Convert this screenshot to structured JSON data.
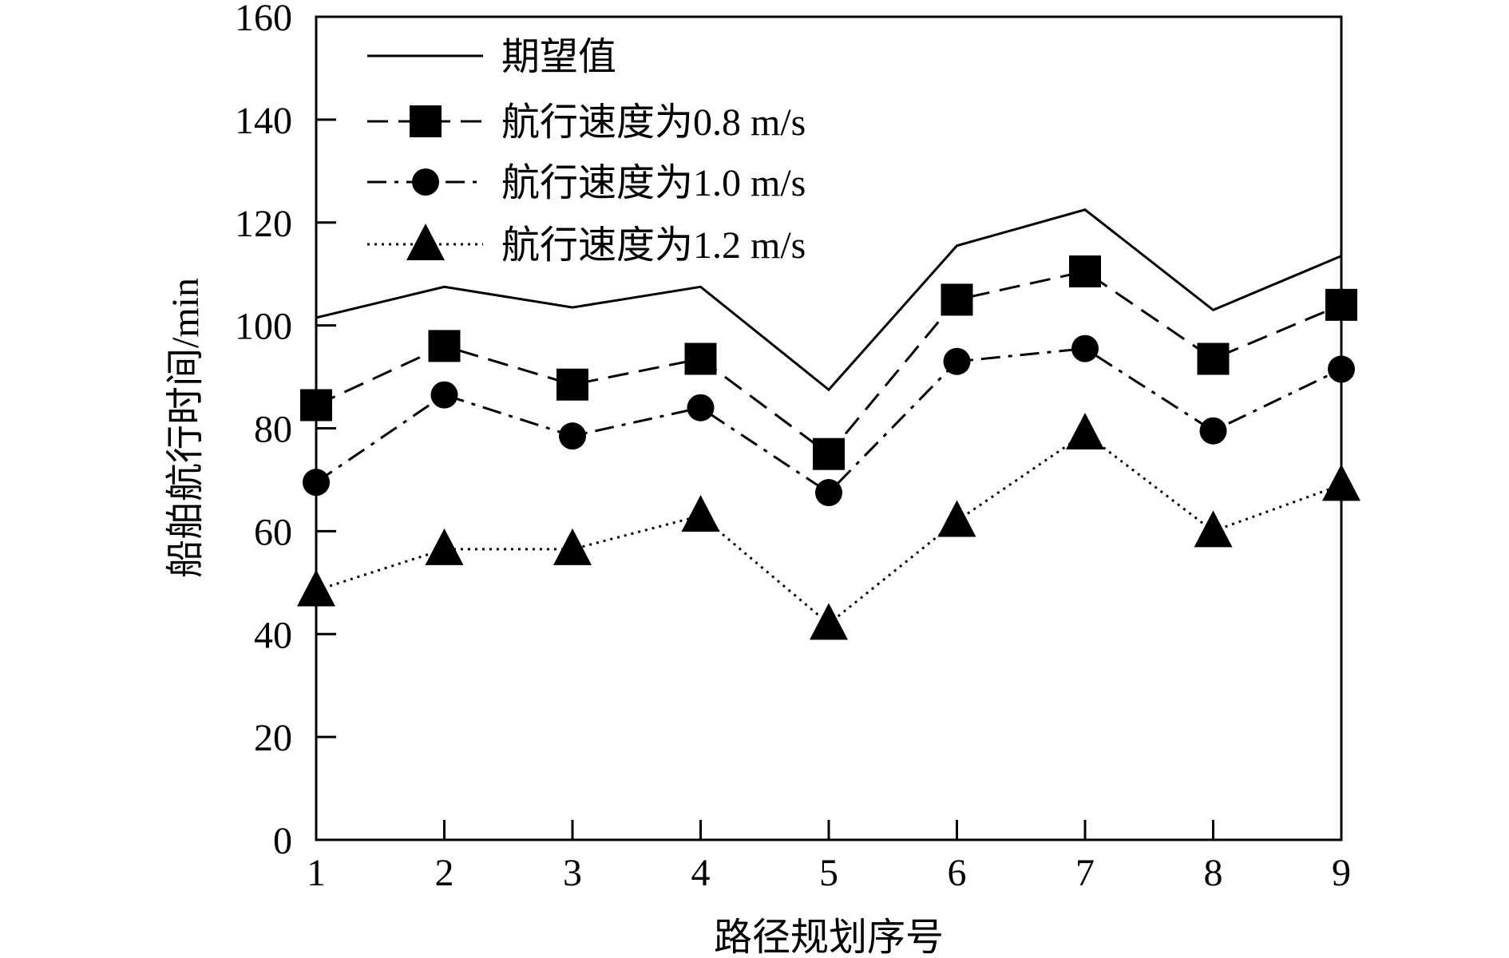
{
  "chart_data": {
    "type": "line",
    "title": "",
    "xlabel": "路径规划序号",
    "ylabel": "船舶航行时间/min",
    "categories": [
      "1",
      "2",
      "3",
      "4",
      "5",
      "6",
      "7",
      "8",
      "9"
    ],
    "x": [
      1,
      2,
      3,
      4,
      5,
      6,
      7,
      8,
      9
    ],
    "xlim": [
      1,
      9
    ],
    "ylim": [
      0,
      160
    ],
    "yticks": [
      0,
      20,
      40,
      60,
      80,
      100,
      120,
      140,
      160
    ],
    "yticklabels": [
      "0",
      "20",
      "40",
      "60",
      "80",
      "100",
      "120",
      "140",
      "160"
    ],
    "grid": false,
    "legend_position": "top-left",
    "series": [
      {
        "name": "期望值",
        "line_style": "solid",
        "marker": "none",
        "values": [
          101.5,
          107.5,
          103.5,
          107.5,
          87.5,
          115.5,
          122.5,
          103.0,
          113.5
        ]
      },
      {
        "name": "航行速度为0.8 m/s",
        "line_style": "dashed",
        "marker": "square",
        "values": [
          84.5,
          96.0,
          88.5,
          93.5,
          75.0,
          105.0,
          110.5,
          93.5,
          104.0
        ]
      },
      {
        "name": "航行速度为1.0 m/s",
        "line_style": "dash-dot",
        "marker": "circle",
        "values": [
          69.5,
          86.5,
          78.5,
          84.0,
          67.5,
          93.0,
          95.5,
          79.5,
          91.5
        ]
      },
      {
        "name": "航行速度为1.2 m/s",
        "line_style": "dotted",
        "marker": "triangle",
        "values": [
          48.5,
          56.5,
          56.5,
          63.0,
          42.0,
          62.0,
          79.0,
          60.0,
          69.0
        ]
      }
    ]
  }
}
